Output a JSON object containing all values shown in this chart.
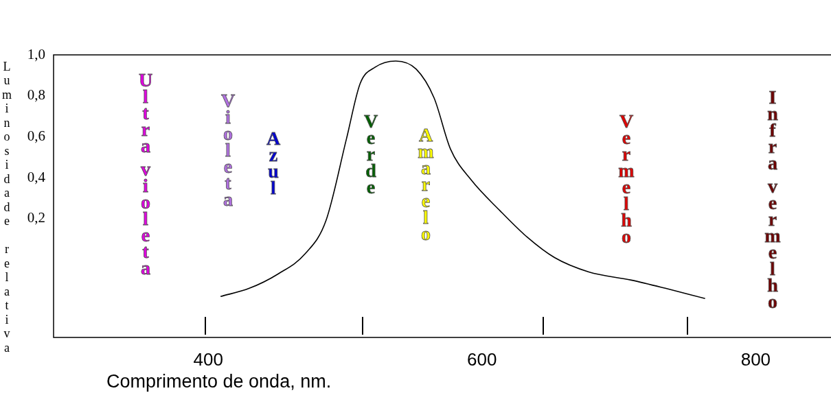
{
  "chart_data": {
    "type": "line",
    "xlabel": "Comprimento de onda, nm.",
    "ylabel": "Luminosidade relativa",
    "xlim": [
      287,
      855
    ],
    "ylim": [
      -0.38,
      1.0
    ],
    "xticks": [
      400,
      600,
      800
    ],
    "yticks": [
      {
        "value": 0.2,
        "label": "0,2"
      },
      {
        "value": 0.4,
        "label": "0,4"
      },
      {
        "value": 0.6,
        "label": "0,6"
      },
      {
        "value": 0.8,
        "label": "0,8"
      },
      {
        "value": 1.0,
        "label": "1,0"
      }
    ],
    "grid": false,
    "legend": false,
    "marker": "none",
    "line_style": "solid",
    "series": [
      {
        "color": "#000000",
        "x": [
          409,
          430,
          451,
          471,
          486,
          501,
          511,
          522,
          537,
          552,
          565,
          577,
          592,
          613,
          633,
          653,
          678,
          709,
          734,
          763
        ],
        "values": [
          -0.18,
          -0.14,
          -0.07,
          0.03,
          0.19,
          0.59,
          0.86,
          0.94,
          0.97,
          0.93,
          0.79,
          0.54,
          0.39,
          0.24,
          0.11,
          0.01,
          -0.06,
          -0.1,
          -0.14,
          -0.19
        ]
      }
    ],
    "annotations": [
      "Ultra violeta",
      "Violeta",
      "Azul",
      "Verde",
      "Amarelo",
      "Vermelho",
      "Infra vermelho"
    ]
  }
}
